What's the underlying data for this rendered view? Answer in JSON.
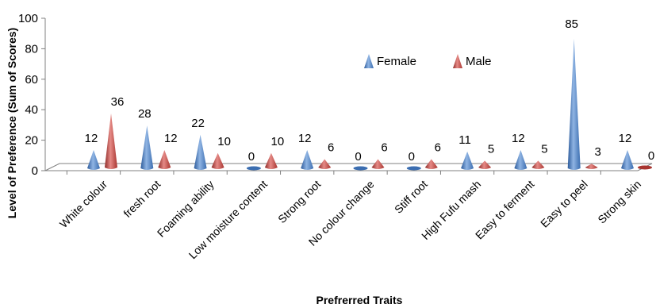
{
  "chart_data": {
    "type": "bar",
    "style": "3D cones",
    "xlabel": "Prefrerred Traits",
    "ylabel": "Level of Preference (Sum of Scores)",
    "ylim": [
      0,
      100
    ],
    "yticks": [
      0,
      20,
      40,
      60,
      80,
      100
    ],
    "categories": [
      "White colour",
      "fresh root",
      "Foaming ability",
      "Low moisture content",
      "Strong root",
      "No colour change",
      "Stiff root",
      "High Fufu mash",
      "Easy to ferment",
      "Easy to peel",
      "Strong skin"
    ],
    "series": [
      {
        "name": "Female",
        "values": [
          12,
          28,
          22,
          0,
          12,
          0,
          0,
          11,
          12,
          85,
          12
        ],
        "color": "#4F81BD"
      },
      {
        "name": "Male",
        "values": [
          36,
          12,
          10,
          10,
          6,
          6,
          6,
          5,
          5,
          3,
          0
        ],
        "color": "#C0504D"
      }
    ],
    "legend_position": "top-right",
    "grid": false
  }
}
